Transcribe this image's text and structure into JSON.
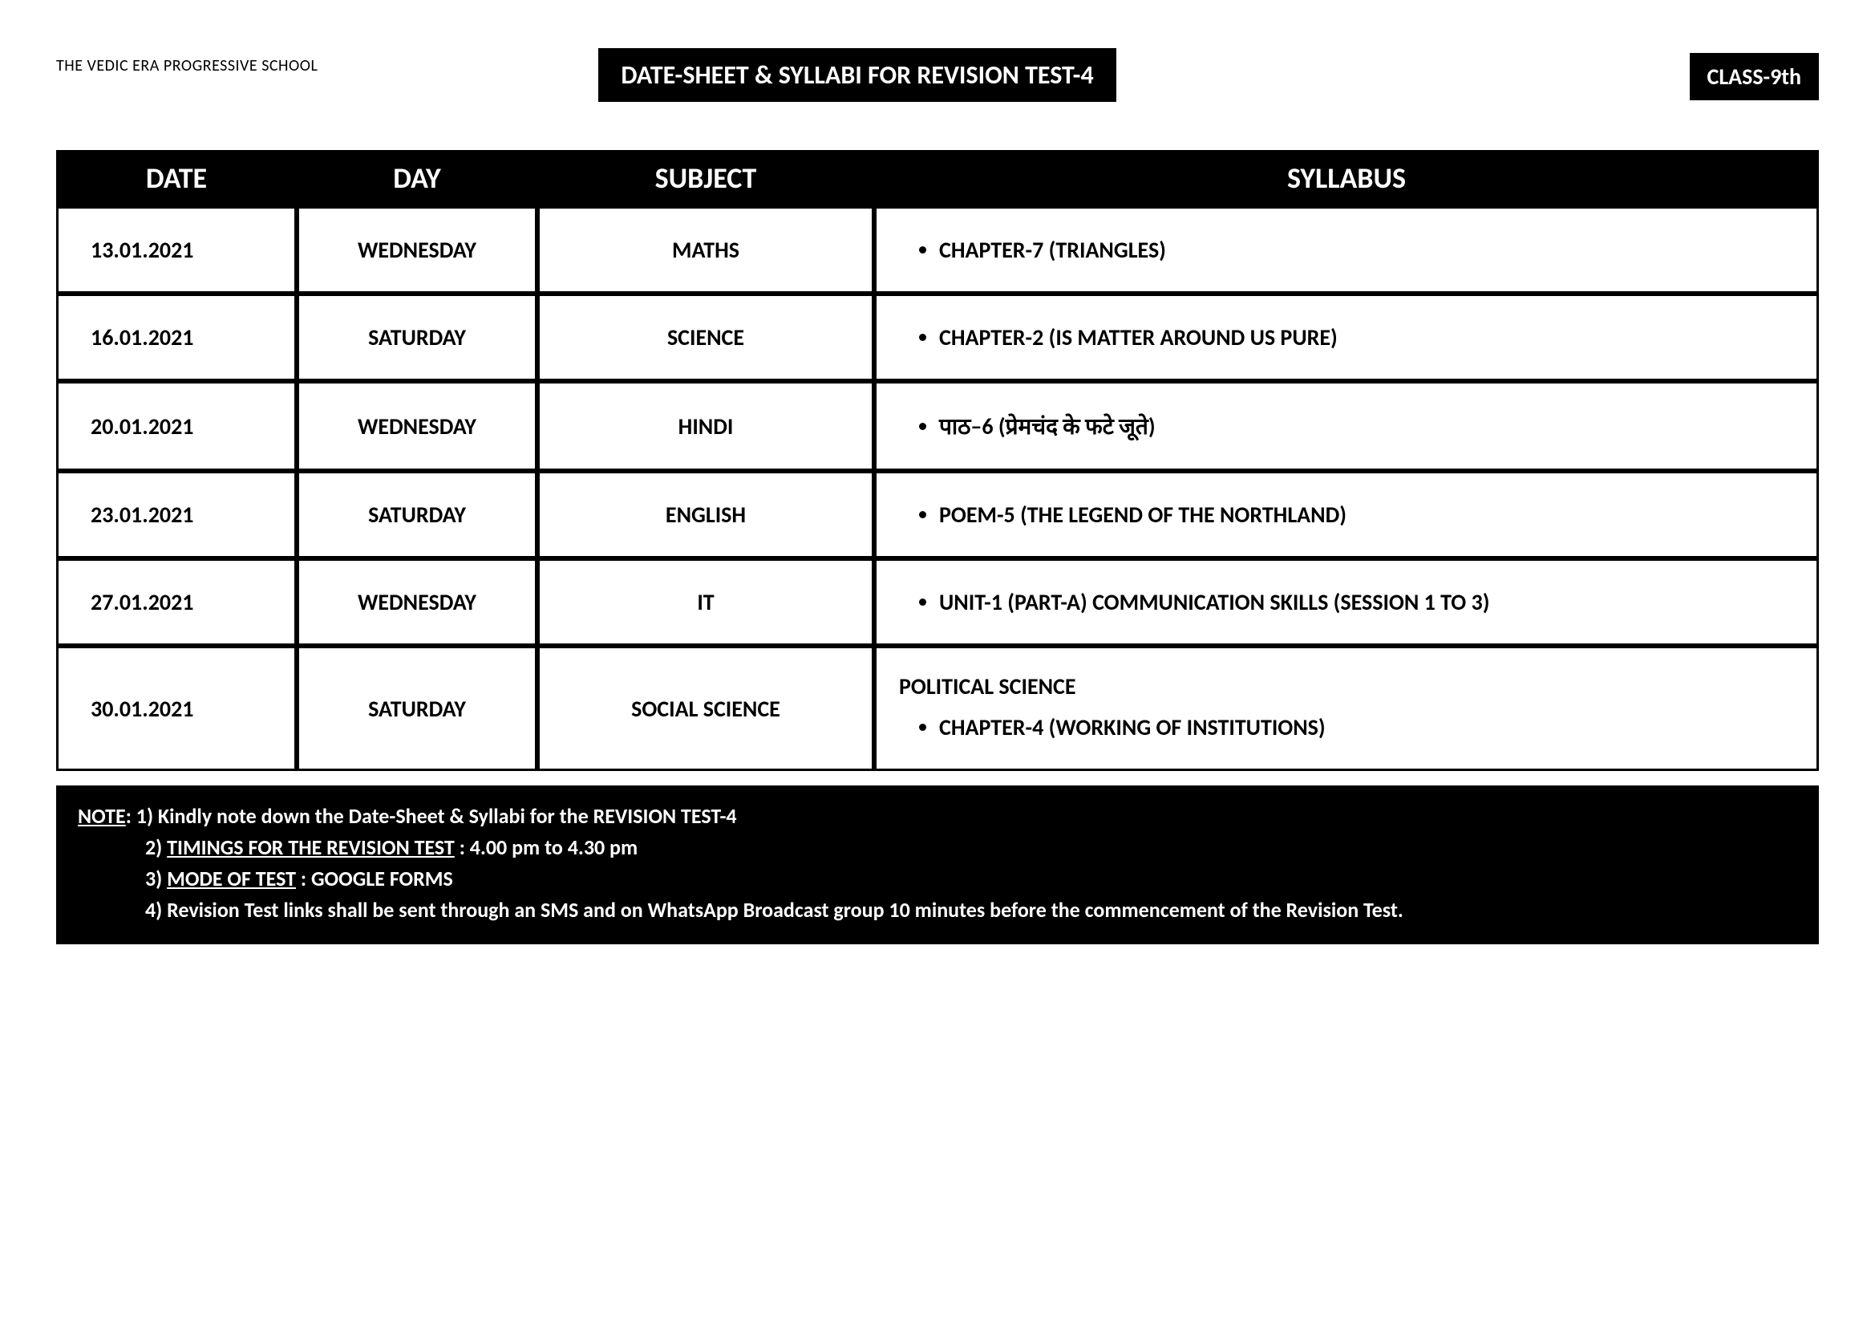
{
  "header": {
    "school_name": "THE VEDIC ERA PROGRESSIVE SCHOOL",
    "title": "DATE-SHEET & SYLLABI FOR REVISION TEST-4",
    "class_label": "CLASS-9th"
  },
  "table": {
    "columns": [
      "DATE",
      "DAY",
      "SUBJECT",
      "SYLLABUS"
    ],
    "rows": [
      {
        "date": "13.01.2021",
        "day": "WEDNESDAY",
        "subject": "MATHS",
        "heading": "",
        "items": [
          "CHAPTER-7 (TRIANGLES)"
        ]
      },
      {
        "date": "16.01.2021",
        "day": "SATURDAY",
        "subject": "SCIENCE",
        "heading": "",
        "items": [
          "CHAPTER-2  (IS MATTER AROUND US PURE)"
        ]
      },
      {
        "date": "20.01.2021",
        "day": "WEDNESDAY",
        "subject": "HINDI",
        "heading": "",
        "items": [
          "पाठ–6  (प्रेमचंद  के  फटे  जूते)"
        ]
      },
      {
        "date": "23.01.2021",
        "day": "SATURDAY",
        "subject": "ENGLISH",
        "heading": "",
        "items": [
          "POEM-5  (THE LEGEND OF THE NORTHLAND)"
        ]
      },
      {
        "date": "27.01.2021",
        "day": "WEDNESDAY",
        "subject": "IT",
        "heading": "",
        "items": [
          "UNIT-1 (PART-A) COMMUNICATION SKILLS (SESSION 1 TO 3)"
        ]
      },
      {
        "date": "30.01.2021",
        "day": "SATURDAY",
        "subject": "SOCIAL SCIENCE",
        "heading": "POLITICAL SCIENCE",
        "items": [
          "CHAPTER-4 (WORKING OF INSTITUTIONS)"
        ]
      }
    ]
  },
  "note": {
    "label": "NOTE",
    "lines": [
      {
        "prefix": "1) Kindly note down the Date-Sheet & Syllabi for the REVISION TEST-4",
        "underline_part": "",
        "suffix": ""
      },
      {
        "prefix": "2) ",
        "underline_part": "TIMINGS FOR THE REVISION TEST",
        "suffix": " : 4.00 pm to 4.30 pm"
      },
      {
        "prefix": "3) ",
        "underline_part": "MODE OF TEST",
        "suffix": " : GOOGLE FORMS"
      },
      {
        "prefix": "4) Revision Test links shall be sent through an SMS and on WhatsApp Broadcast group 10 minutes before the commencement of the Revision Test.",
        "underline_part": "",
        "suffix": ""
      }
    ]
  }
}
